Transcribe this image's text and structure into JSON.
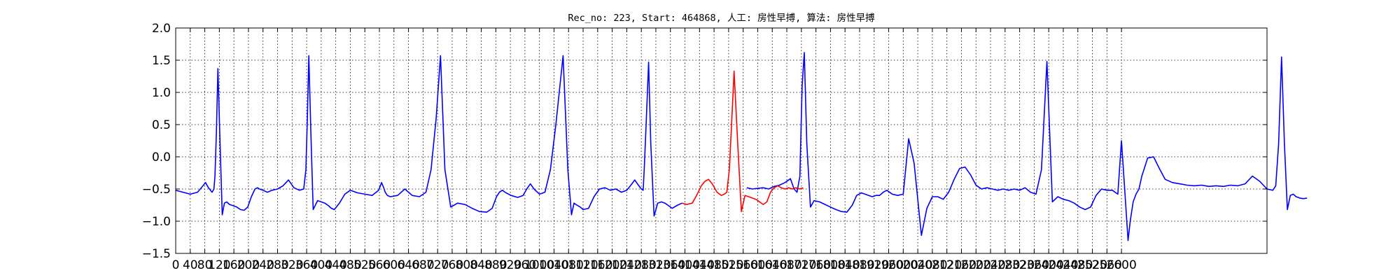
{
  "chart_data": {
    "type": "line",
    "title": "Rec_no: 223, Start: 464868, 人工: 房性早搏, 算法: 房性早搏",
    "xlabel": "",
    "ylabel": "",
    "xlim": [
      0,
      3000
    ],
    "ylim": [
      -1.5,
      2.0
    ],
    "grid": true,
    "y_ticks": [
      -1.5,
      -1.0,
      -0.5,
      0.0,
      0.5,
      1.0,
      1.5,
      2.0
    ],
    "y_tick_labels": [
      "−1.5",
      "−1.0",
      "−0.5",
      "0.0",
      "0.5",
      "1.0",
      "1.5",
      "2.0"
    ],
    "x_ticks": [
      0,
      40,
      80,
      120,
      160,
      200,
      240,
      280,
      320,
      360,
      400,
      440,
      480,
      520,
      560,
      600,
      640,
      680,
      720,
      760,
      800,
      840,
      880,
      920,
      960,
      1000,
      1040,
      1080,
      1120,
      1160,
      1200,
      1240,
      1280,
      1320,
      1360,
      1400,
      1440,
      1480,
      1520,
      1560,
      1600,
      1640,
      1680,
      1720,
      1760,
      1800,
      1840,
      1880,
      1920,
      1960,
      2000,
      2040,
      2080,
      2120,
      2160,
      2200,
      2240,
      2280,
      2320,
      2360,
      2400,
      2440,
      2480,
      2520,
      2560,
      2600
    ],
    "x_tick_labels": [
      "0",
      "40",
      "80",
      "120",
      "160",
      "200",
      "240",
      "280",
      "320",
      "360",
      "400",
      "440",
      "480",
      "520",
      "560",
      "600",
      "640",
      "680",
      "720",
      "760",
      "800",
      "840",
      "880",
      "920",
      "960",
      "1000",
      "1040",
      "1080",
      "1120",
      "1160",
      "1200",
      "1240",
      "1280",
      "1320",
      "1360",
      "1400",
      "1440",
      "1480",
      "1520",
      "1560",
      "1600",
      "1640",
      "1680",
      "1720",
      "1760",
      "1800",
      "1840",
      "1880",
      "1920",
      "1960",
      "2000",
      "2040",
      "2080",
      "2120",
      "2160",
      "2200",
      "2240",
      "2280",
      "2320",
      "2360",
      "2400",
      "2440",
      "2480",
      "2520",
      "2560",
      "2600"
    ],
    "baseline": [
      [
        0,
        -0.52
      ],
      [
        16,
        -0.55
      ],
      [
        32,
        -0.58
      ],
      [
        56,
        -0.55
      ],
      [
        72,
        -0.46
      ],
      [
        80,
        -0.42
      ],
      [
        88,
        -0.5
      ],
      [
        100,
        -0.55
      ],
      [
        430,
        -0.78
      ],
      [
        446,
        -0.74
      ],
      [
        462,
        -0.6
      ],
      [
        478,
        -0.55
      ],
      [
        500,
        -0.55
      ],
      [
        520,
        -0.47
      ],
      [
        548,
        -0.5
      ],
      [
        570,
        -0.56
      ],
      [
        590,
        -0.62
      ],
      [
        610,
        -0.6
      ],
      [
        628,
        -0.48
      ],
      [
        644,
        -0.58
      ],
      [
        660,
        -0.62
      ],
      [
        900,
        -0.85
      ],
      [
        920,
        -0.85
      ],
      [
        940,
        -0.82
      ],
      [
        960,
        -0.75
      ],
      [
        980,
        -0.65
      ],
      [
        1000,
        -0.58
      ],
      [
        1020,
        -0.52
      ],
      [
        1040,
        -0.5
      ],
      [
        1060,
        -0.55
      ],
      [
        1080,
        -0.52
      ],
      [
        1096,
        -0.45
      ]
    ],
    "series": [
      {
        "name": "",
        "color": "#0000ff",
        "segments": [
          {
            "x": [
              0,
              20,
              40,
              60,
              75,
              82,
              90,
              100,
              105,
              108,
              112,
              116,
              122,
              128,
              134,
              140,
              148,
              158,
              168,
              178,
              188,
              198,
              208,
              218,
              225,
              230,
              240,
              252,
              265,
              280,
              295,
              310,
              325,
              340,
              352,
              358,
              362,
              366,
              372,
              378,
              390,
              400,
              410,
              420,
              428,
              436,
              450,
              465,
              480,
              500,
              520,
              540,
              558,
              566,
              572,
              576,
              582,
              590,
              610,
              630,
              650,
              670,
              688,
              702,
              716,
              728,
              740,
              756,
              775,
              795,
              815,
              835,
              855,
              870,
              882,
              890,
              898,
              908,
              922,
              940,
              955,
              965,
              975,
              985,
              1000,
              1015,
              1030,
              1045,
              1065,
              1078,
              1088,
              1095,
              1100,
              1106,
              1112,
              1120,
              1135,
              1150,
              1165,
              1180,
              1195,
              1210,
              1225,
              1240,
              1250,
              1262,
              1272,
              1280,
              1285,
              1288,
              1294,
              1300,
              1306,
              1315,
              1325,
              1335,
              1345,
              1355,
              1365,
              1380,
              1392
            ],
            "y": [
              -0.52,
              -0.55,
              -0.58,
              -0.55,
              -0.45,
              -0.4,
              -0.48,
              -0.55,
              -0.5,
              -0.3,
              0.4,
              1.37,
              0.2,
              -0.9,
              -0.72,
              -0.7,
              -0.74,
              -0.76,
              -0.78,
              -0.82,
              -0.83,
              -0.78,
              -0.62,
              -0.5,
              -0.48,
              -0.5,
              -0.52,
              -0.55,
              -0.52,
              -0.5,
              -0.45,
              -0.36,
              -0.48,
              -0.52,
              -0.5,
              -0.2,
              0.6,
              1.57,
              0.3,
              -0.82,
              -0.68,
              -0.7,
              -0.72,
              -0.76,
              -0.8,
              -0.82,
              -0.72,
              -0.58,
              -0.52,
              -0.56,
              -0.58,
              -0.6,
              -0.52,
              -0.4,
              -0.48,
              -0.55,
              -0.6,
              -0.62,
              -0.6,
              -0.5,
              -0.6,
              -0.62,
              -0.55,
              -0.2,
              0.6,
              1.57,
              -0.2,
              -0.78,
              -0.72,
              -0.74,
              -0.8,
              -0.85,
              -0.86,
              -0.8,
              -0.62,
              -0.55,
              -0.52,
              -0.56,
              -0.6,
              -0.63,
              -0.6,
              -0.5,
              -0.42,
              -0.5,
              -0.58,
              -0.55,
              -0.2,
              0.5,
              1.57,
              -0.2,
              -0.9,
              -0.72,
              -0.74,
              -0.76,
              -0.78,
              -0.82,
              -0.8,
              -0.62,
              -0.5,
              -0.48,
              -0.52,
              -0.5,
              -0.55,
              -0.52,
              -0.45,
              -0.36,
              -0.44,
              -0.5,
              -0.52,
              -0.2,
              0.6,
              1.47,
              0.2,
              -0.92,
              -0.72,
              -0.7,
              -0.72,
              -0.76,
              -0.8,
              -0.75,
              -0.72
            ]
          },
          {
            "x": [
              1570,
              1585,
              1600,
              1615,
              1630,
              1645,
              1660,
              1675,
              1690,
              1700,
              1708,
              1716,
              1722,
              1728,
              1735,
              1745,
              1755,
              1770,
              1785,
              1800,
              1815,
              1830,
              1845,
              1860,
              1872,
              1885,
              1895,
              1905,
              1915,
              1925,
              1935,
              1945,
              1955,
              1970,
              1985,
              2000,
              2015,
              2030,
              2050,
              2065,
              2080,
              2095,
              2110,
              2125,
              2140,
              2155,
              2170,
              2185,
              2200,
              2215,
              2230,
              2245,
              2260,
              2275,
              2290,
              2305,
              2320,
              2335,
              2350,
              2365,
              2380,
              2395,
              2410,
              2425,
              2440,
              2455,
              2470,
              2485,
              2500,
              2515,
              2530,
              2545,
              2560,
              2575,
              2590,
              2600,
              2610,
              2618,
              2624,
              2632,
              2640,
              2648,
              2656
            ],
            "y": [
              -0.48,
              -0.5,
              -0.49,
              -0.48,
              -0.5,
              -0.46,
              -0.44,
              -0.4,
              -0.34,
              -0.5,
              -0.55,
              -0.3,
              1.1,
              1.62,
              0.2,
              -0.78,
              -0.68,
              -0.7,
              -0.74,
              -0.78,
              -0.82,
              -0.85,
              -0.86,
              -0.75,
              -0.6,
              -0.56,
              -0.58,
              -0.6,
              -0.62,
              -0.6,
              -0.6,
              -0.55,
              -0.52,
              -0.58,
              -0.6,
              -0.58,
              0.28,
              -0.1,
              -1.22,
              -0.8,
              -0.62,
              -0.62,
              -0.66,
              -0.55,
              -0.35,
              -0.18,
              -0.16,
              -0.28,
              -0.44,
              -0.5,
              -0.48,
              -0.5,
              -0.52,
              -0.5,
              -0.52,
              -0.5,
              -0.52,
              -0.48,
              -0.55,
              -0.58,
              -0.2,
              1.48,
              -0.7,
              -0.62,
              -0.66,
              -0.68,
              -0.72,
              -0.78,
              -0.82,
              -0.78,
              -0.6,
              -0.5,
              -0.52,
              -0.52,
              -0.58,
              0.25,
              -0.6,
              -1.3,
              -1.0,
              -0.7,
              -0.58,
              -0.5,
              -0.3
            ]
          },
          {
            "x": [
              2656,
              2672,
              2688,
              2704,
              2720,
              2740,
              2760,
              2780,
              2800,
              2820,
              2840,
              2860,
              2880,
              2900,
              2920,
              2940,
              2960,
              2980,
              3000,
              3016,
              3024,
              3032,
              3040,
              3048,
              3056,
              3064,
              3072,
              3080,
              3090,
              3100,
              3110
            ],
            "y": [
              -0.3,
              -0.02,
              0.0,
              -0.18,
              -0.35,
              -0.4,
              -0.42,
              -0.44,
              -0.45,
              -0.44,
              -0.46,
              -0.45,
              -0.46,
              -0.44,
              -0.45,
              -0.42,
              -0.3,
              -0.38,
              -0.5,
              -0.52,
              -0.45,
              0.2,
              1.55,
              0.2,
              -0.82,
              -0.6,
              -0.58,
              -0.62,
              -0.64,
              -0.65,
              -0.64
            ]
          }
        ]
      },
      {
        "name": "",
        "color": "#ff0000",
        "segments": [
          {
            "x": [
              1392,
              1405,
              1420,
              1432,
              1445,
              1455,
              1465,
              1475,
              1488,
              1500,
              1508,
              1515,
              1522,
              1528,
              1535,
              1545,
              1555,
              1565,
              1575,
              1585,
              1595,
              1605,
              1615,
              1625,
              1635,
              1645,
              1655,
              1665,
              1675,
              1685,
              1695,
              1705,
              1715,
              1725
            ],
            "y": [
              -0.72,
              -0.74,
              -0.72,
              -0.6,
              -0.45,
              -0.38,
              -0.35,
              -0.42,
              -0.55,
              -0.6,
              -0.58,
              -0.55,
              -0.2,
              0.5,
              1.33,
              0.2,
              -0.85,
              -0.6,
              -0.62,
              -0.64,
              -0.66,
              -0.7,
              -0.74,
              -0.7,
              -0.55,
              -0.48,
              -0.45,
              -0.48,
              -0.5,
              -0.48,
              -0.5,
              -0.48,
              -0.5,
              -0.48
            ]
          }
        ]
      }
    ]
  }
}
